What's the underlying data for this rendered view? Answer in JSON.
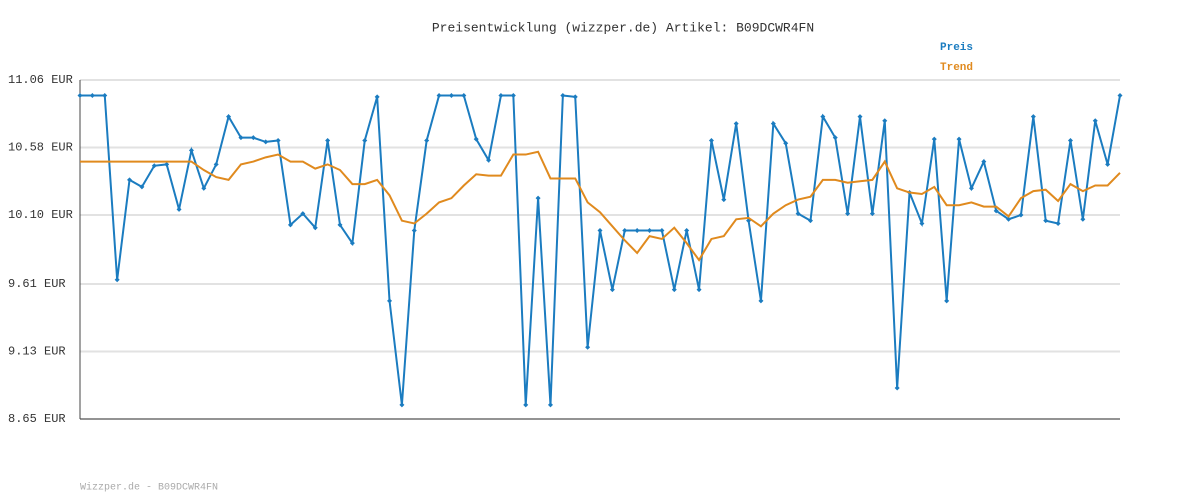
{
  "chart_data": {
    "type": "line",
    "title": "Preisentwicklung (wizzper.de) Artikel: B09DCWR4FN",
    "footer": "Wizzper.de - B09DCWR4FN",
    "categories": [
      null,
      null,
      null,
      null,
      null,
      null,
      null,
      null,
      null,
      null,
      null,
      null,
      null,
      null,
      null,
      null,
      null,
      null,
      null,
      null,
      null,
      null,
      null,
      null,
      null,
      null,
      null,
      null,
      null,
      null,
      null,
      null,
      null,
      null,
      null,
      null,
      null,
      null,
      null,
      null,
      null,
      null,
      null,
      null,
      null,
      null,
      null,
      null,
      null,
      null,
      null,
      null,
      null,
      null,
      null,
      null,
      null,
      null,
      null,
      null,
      null,
      null,
      null,
      null,
      null,
      null,
      null,
      null,
      null,
      null,
      null,
      null,
      null,
      null,
      null,
      null,
      null,
      null,
      null,
      null,
      null,
      null,
      null,
      null,
      null
    ],
    "series": [
      {
        "name": "Preis",
        "color": "#1b7cc0",
        "markers": true,
        "values": [
          10.95,
          10.95,
          10.95,
          9.64,
          10.35,
          10.3,
          10.45,
          10.46,
          10.14,
          10.56,
          10.29,
          10.46,
          10.8,
          10.65,
          10.65,
          10.62,
          10.63,
          10.03,
          10.11,
          10.01,
          10.63,
          10.03,
          9.9,
          10.63,
          10.94,
          9.49,
          8.75,
          9.99,
          10.63,
          10.95,
          10.95,
          10.95,
          10.64,
          10.49,
          10.95,
          10.95,
          8.75,
          10.22,
          8.75,
          10.95,
          10.94,
          9.16,
          9.99,
          9.57,
          9.99,
          9.99,
          9.99,
          9.99,
          9.57,
          9.99,
          9.57,
          10.63,
          10.21,
          10.75,
          10.06,
          9.49,
          10.75,
          10.61,
          10.11,
          10.06,
          10.8,
          10.65,
          10.11,
          10.8,
          10.11,
          10.77,
          8.87,
          10.26,
          10.04,
          10.64,
          9.49,
          10.64,
          10.29,
          10.48,
          10.13,
          10.07,
          10.1,
          10.8,
          10.06,
          10.04,
          10.63,
          10.07,
          10.77,
          10.46,
          10.95
        ]
      },
      {
        "name": "Trend",
        "color": "#e08a1e",
        "markers": false,
        "values": [
          10.48,
          10.48,
          10.48,
          10.48,
          10.48,
          10.48,
          10.48,
          10.48,
          10.48,
          10.48,
          10.42,
          10.37,
          10.35,
          10.46,
          10.48,
          10.51,
          10.53,
          10.48,
          10.48,
          10.43,
          10.46,
          10.42,
          10.32,
          10.32,
          10.35,
          10.24,
          10.06,
          10.04,
          10.11,
          10.19,
          10.22,
          10.31,
          10.39,
          10.38,
          10.38,
          10.53,
          10.53,
          10.55,
          10.36,
          10.36,
          10.36,
          10.19,
          10.12,
          10.02,
          9.92,
          9.83,
          9.95,
          9.93,
          10.01,
          9.9,
          9.78,
          9.93,
          9.95,
          10.07,
          10.08,
          10.02,
          10.11,
          10.17,
          10.21,
          10.23,
          10.35,
          10.35,
          10.33,
          10.34,
          10.35,
          10.48,
          10.29,
          10.26,
          10.25,
          10.3,
          10.17,
          10.17,
          10.19,
          10.16,
          10.16,
          10.09,
          10.22,
          10.27,
          10.28,
          10.2,
          10.32,
          10.27,
          10.31,
          10.31,
          10.4
        ]
      }
    ],
    "ylim": [
      8.65,
      11.06
    ],
    "yticks": [
      {
        "value": 8.65,
        "label": "8.65 EUR"
      },
      {
        "value": 9.13,
        "label": "9.13 EUR"
      },
      {
        "value": 9.61,
        "label": "9.61 EUR"
      },
      {
        "value": 10.1,
        "label": "10.10 EUR"
      },
      {
        "value": 10.58,
        "label": "10.58 EUR"
      },
      {
        "value": 11.06,
        "label": "11.06 EUR"
      }
    ],
    "grid": true,
    "legend": "top-right"
  }
}
